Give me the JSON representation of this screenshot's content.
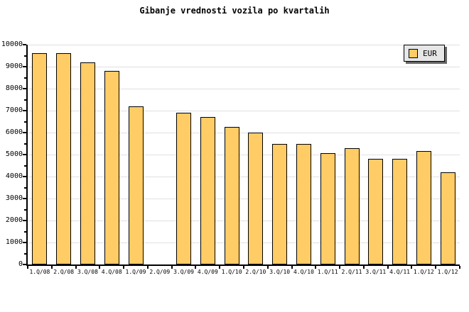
{
  "title": "Gibanje vrednosti vozila po kvartalih",
  "legend": {
    "label": "EUR",
    "swatch_color": "#FFCC66",
    "background": "#E6E6E6",
    "shadow_color": "#666666"
  },
  "colors": {
    "bar_fill": "#FFCC66",
    "bar_border": "#000000",
    "grid": "#E0E0E0",
    "axis": "#000000",
    "background": "#FFFFFF",
    "text": "#000000"
  },
  "chart_data": {
    "type": "bar",
    "title": "Gibanje vrednosti vozila po kvartalih",
    "series_name": "EUR",
    "categories": [
      "1.Q/08",
      "2.Q/08",
      "3.Q/08",
      "4.Q/08",
      "1.Q/09",
      "2.Q/09",
      "3.Q/09",
      "4.Q/09",
      "1.Q/10",
      "2.Q/10",
      "3.Q/10",
      "4.Q/10",
      "1.Q/11",
      "2.Q/11",
      "3.Q/11",
      "4.Q/11",
      "1.Q/12",
      "1.Q/12"
    ],
    "values": [
      9600,
      9600,
      9200,
      8800,
      7200,
      null,
      6900,
      6700,
      6250,
      6000,
      5500,
      5500,
      5050,
      5300,
      4800,
      4800,
      5150,
      4200
    ],
    "xlabel": "",
    "ylabel": "",
    "ylim": [
      0,
      10000
    ],
    "y_tick_step": 1000,
    "y_minor_tick_step": 500,
    "y_tick_labels": [
      "0",
      "1000",
      "2000",
      "3000",
      "4000",
      "5000",
      "6000",
      "7000",
      "8000",
      "9000",
      "10000"
    ],
    "grid": true,
    "legend_position": "top-right"
  }
}
